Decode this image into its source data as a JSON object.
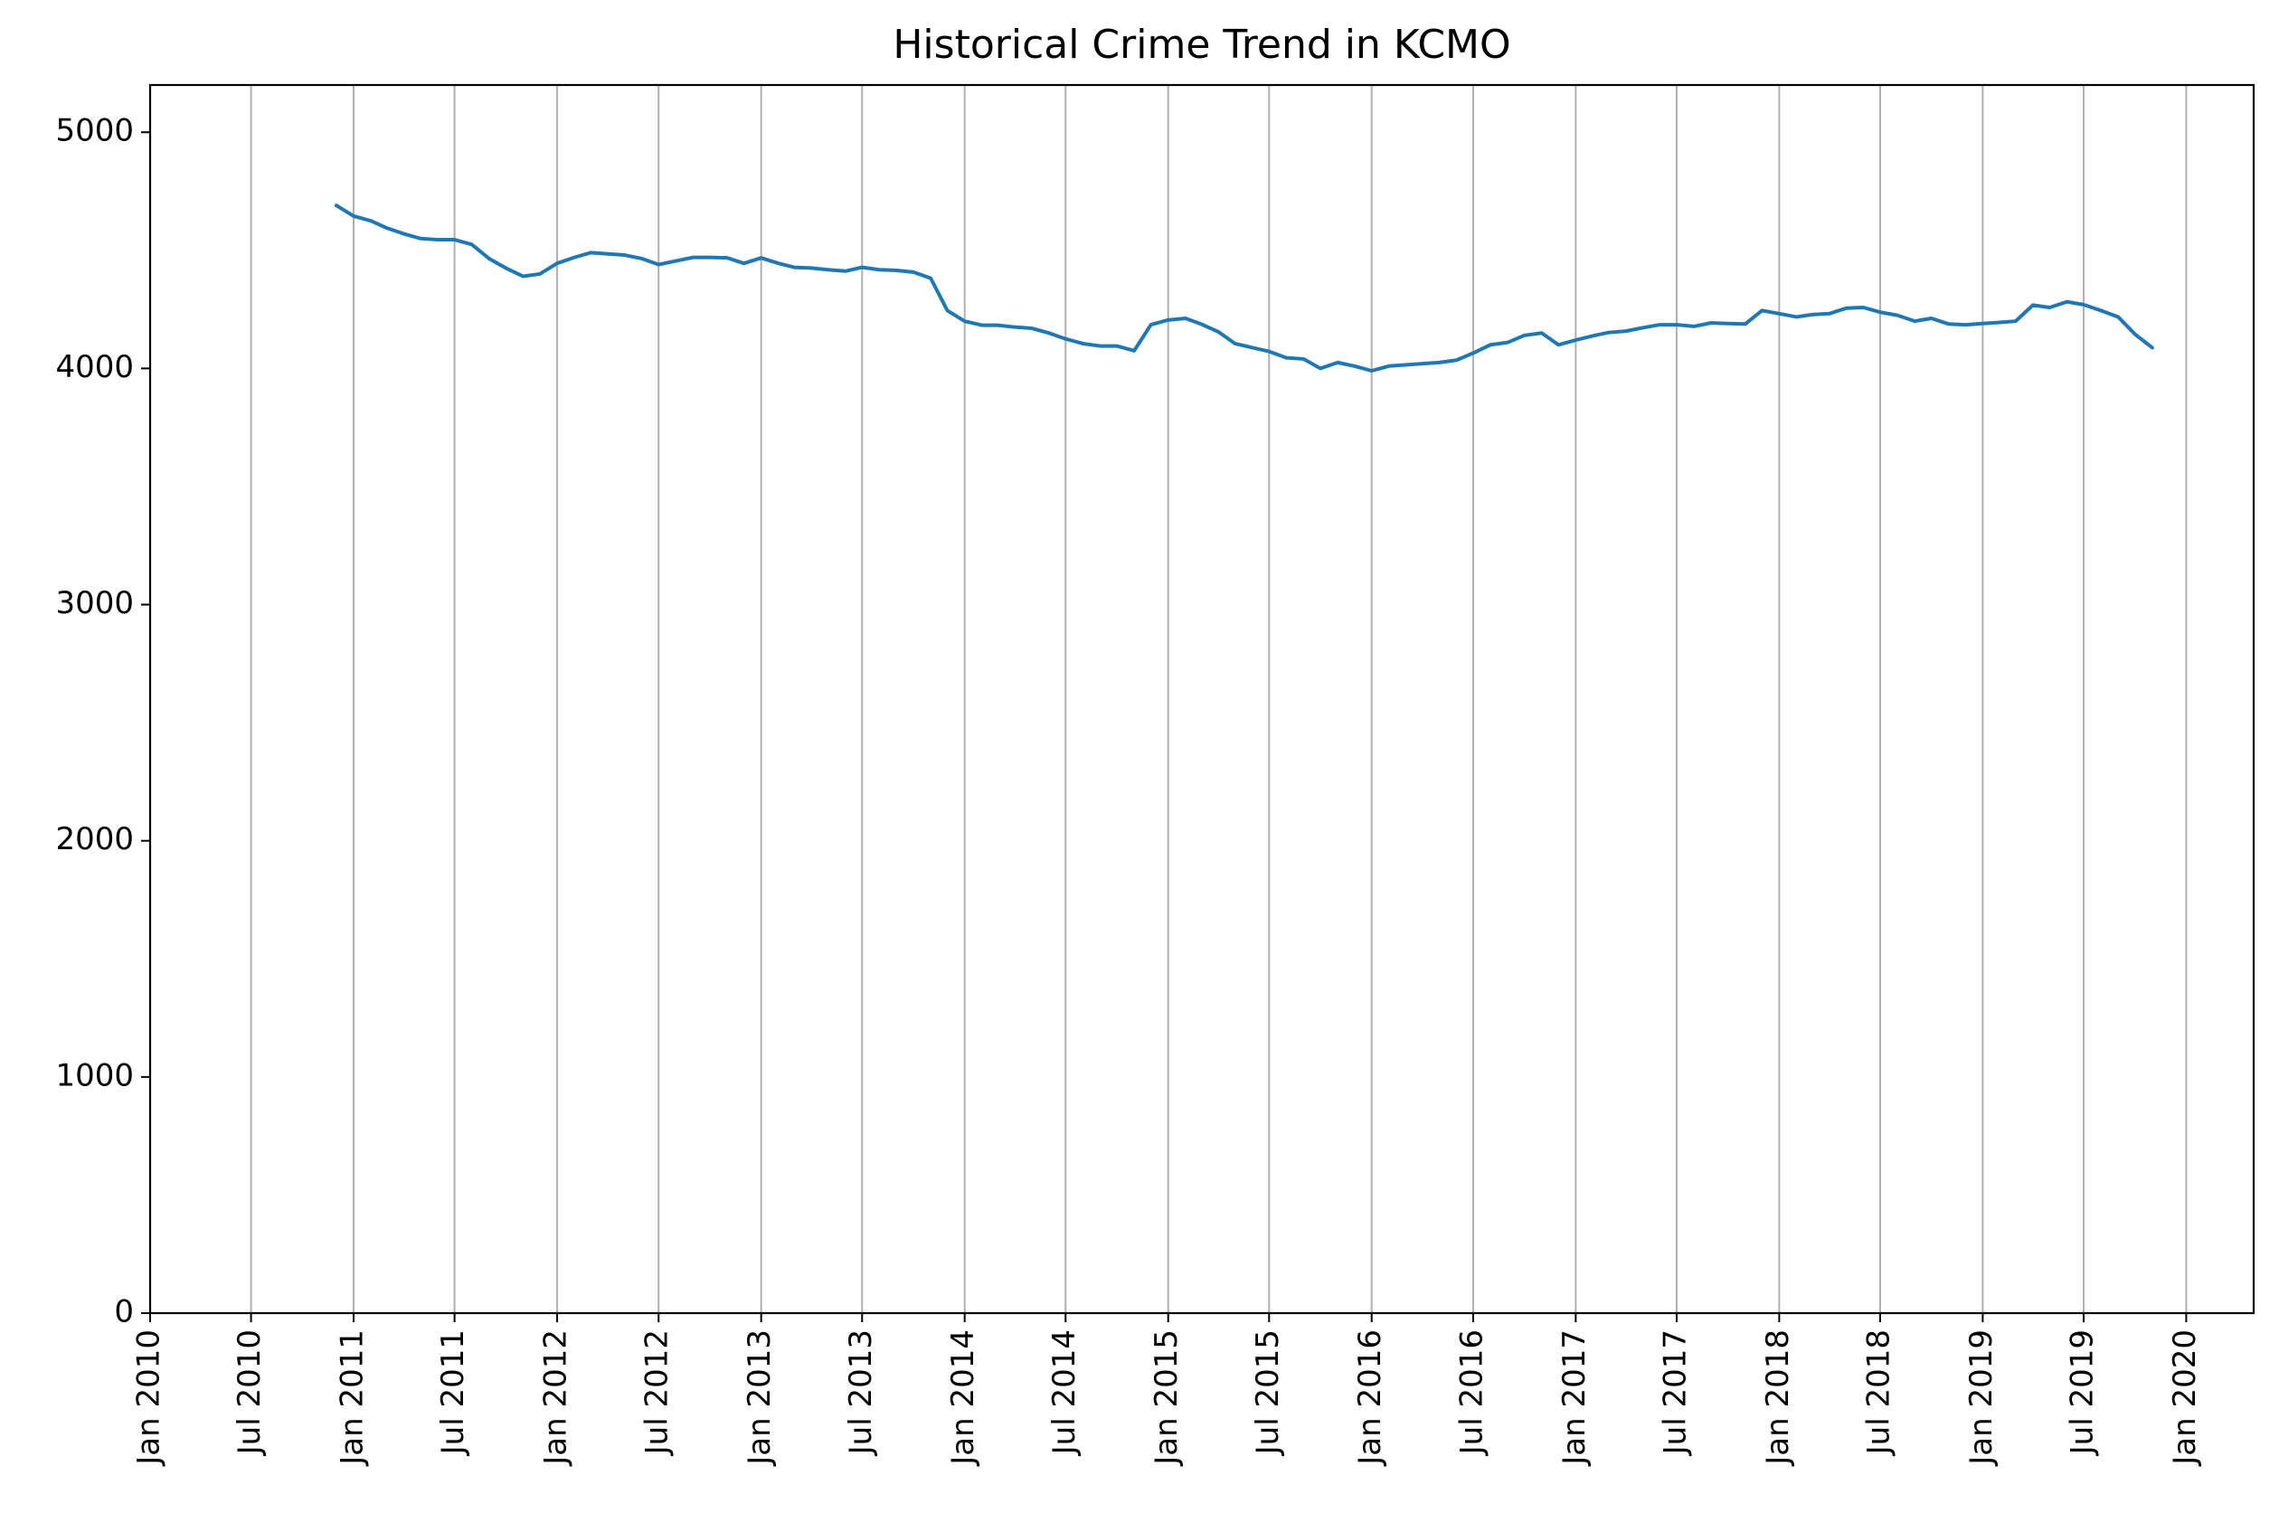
{
  "chart_data": {
    "type": "line",
    "title": "Historical Crime Trend in KCMO",
    "xlabel": "",
    "ylabel": "",
    "xlim": [
      "2010-01-01",
      "2020-05-01"
    ],
    "ylim": [
      0,
      5200
    ],
    "grid": "vertical",
    "x_ticks": [
      {
        "date": "2010-01-01",
        "label": "Jan 2010"
      },
      {
        "date": "2010-07-01",
        "label": "Jul 2010"
      },
      {
        "date": "2011-01-01",
        "label": "Jan 2011"
      },
      {
        "date": "2011-07-01",
        "label": "Jul 2011"
      },
      {
        "date": "2012-01-01",
        "label": "Jan 2012"
      },
      {
        "date": "2012-07-01",
        "label": "Jul 2012"
      },
      {
        "date": "2013-01-01",
        "label": "Jan 2013"
      },
      {
        "date": "2013-07-01",
        "label": "Jul 2013"
      },
      {
        "date": "2014-01-01",
        "label": "Jan 2014"
      },
      {
        "date": "2014-07-01",
        "label": "Jul 2014"
      },
      {
        "date": "2015-01-01",
        "label": "Jan 2015"
      },
      {
        "date": "2015-07-01",
        "label": "Jul 2015"
      },
      {
        "date": "2016-01-01",
        "label": "Jan 2016"
      },
      {
        "date": "2016-07-01",
        "label": "Jul 2016"
      },
      {
        "date": "2017-01-01",
        "label": "Jan 2017"
      },
      {
        "date": "2017-07-01",
        "label": "Jul 2017"
      },
      {
        "date": "2018-01-01",
        "label": "Jan 2018"
      },
      {
        "date": "2018-07-01",
        "label": "Jul 2018"
      },
      {
        "date": "2019-01-01",
        "label": "Jan 2019"
      },
      {
        "date": "2019-07-01",
        "label": "Jul 2019"
      },
      {
        "date": "2020-01-01",
        "label": "Jan 2020"
      }
    ],
    "y_ticks": [
      {
        "value": 0,
        "label": "0"
      },
      {
        "value": 1000,
        "label": "1000"
      },
      {
        "value": 2000,
        "label": "2000"
      },
      {
        "value": 3000,
        "label": "3000"
      },
      {
        "value": 4000,
        "label": "4000"
      },
      {
        "value": 5000,
        "label": "5000"
      }
    ],
    "series": [
      {
        "color": "#1f77b4",
        "points": [
          [
            "2010-12-01",
            4690
          ],
          [
            "2011-01-01",
            4645
          ],
          [
            "2011-02-01",
            4625
          ],
          [
            "2011-03-01",
            4595
          ],
          [
            "2011-04-01",
            4570
          ],
          [
            "2011-05-01",
            4550
          ],
          [
            "2011-06-01",
            4545
          ],
          [
            "2011-07-01",
            4545
          ],
          [
            "2011-08-01",
            4525
          ],
          [
            "2011-09-01",
            4465
          ],
          [
            "2011-10-01",
            4425
          ],
          [
            "2011-11-01",
            4390
          ],
          [
            "2011-12-01",
            4400
          ],
          [
            "2012-01-01",
            4445
          ],
          [
            "2012-02-01",
            4470
          ],
          [
            "2012-03-01",
            4490
          ],
          [
            "2012-04-01",
            4485
          ],
          [
            "2012-05-01",
            4480
          ],
          [
            "2012-06-01",
            4465
          ],
          [
            "2012-07-01",
            4440
          ],
          [
            "2012-08-01",
            4455
          ],
          [
            "2012-09-01",
            4470
          ],
          [
            "2012-10-01",
            4470
          ],
          [
            "2012-11-01",
            4468
          ],
          [
            "2012-12-01",
            4445
          ],
          [
            "2013-01-01",
            4468
          ],
          [
            "2013-02-01",
            4445
          ],
          [
            "2013-03-01",
            4428
          ],
          [
            "2013-04-01",
            4425
          ],
          [
            "2013-05-01",
            4418
          ],
          [
            "2013-06-01",
            4412
          ],
          [
            "2013-07-01",
            4428
          ],
          [
            "2013-08-01",
            4418
          ],
          [
            "2013-09-01",
            4415
          ],
          [
            "2013-10-01",
            4408
          ],
          [
            "2013-11-01",
            4382
          ],
          [
            "2013-12-01",
            4245
          ],
          [
            "2014-01-01",
            4200
          ],
          [
            "2014-02-01",
            4183
          ],
          [
            "2014-03-01",
            4183
          ],
          [
            "2014-04-01",
            4175
          ],
          [
            "2014-05-01",
            4170
          ],
          [
            "2014-06-01",
            4150
          ],
          [
            "2014-07-01",
            4125
          ],
          [
            "2014-08-01",
            4105
          ],
          [
            "2014-09-01",
            4095
          ],
          [
            "2014-10-01",
            4095
          ],
          [
            "2014-11-01",
            4075
          ],
          [
            "2014-12-01",
            4185
          ],
          [
            "2015-01-01",
            4205
          ],
          [
            "2015-02-01",
            4212
          ],
          [
            "2015-03-01",
            4188
          ],
          [
            "2015-04-01",
            4155
          ],
          [
            "2015-05-01",
            4105
          ],
          [
            "2015-06-01",
            4088
          ],
          [
            "2015-07-01",
            4072
          ],
          [
            "2015-08-01",
            4045
          ],
          [
            "2015-09-01",
            4040
          ],
          [
            "2015-10-01",
            4000
          ],
          [
            "2015-11-01",
            4025
          ],
          [
            "2015-12-01",
            4010
          ],
          [
            "2016-01-01",
            3990
          ],
          [
            "2016-02-01",
            4010
          ],
          [
            "2016-03-01",
            4015
          ],
          [
            "2016-04-01",
            4020
          ],
          [
            "2016-05-01",
            4025
          ],
          [
            "2016-06-01",
            4035
          ],
          [
            "2016-07-01",
            4065
          ],
          [
            "2016-08-01",
            4100
          ],
          [
            "2016-09-01",
            4110
          ],
          [
            "2016-10-01",
            4140
          ],
          [
            "2016-11-01",
            4150
          ],
          [
            "2016-12-01",
            4100
          ],
          [
            "2017-01-01",
            4120
          ],
          [
            "2017-02-01",
            4138
          ],
          [
            "2017-03-01",
            4152
          ],
          [
            "2017-04-01",
            4158
          ],
          [
            "2017-05-01",
            4172
          ],
          [
            "2017-06-01",
            4185
          ],
          [
            "2017-07-01",
            4185
          ],
          [
            "2017-08-01",
            4178
          ],
          [
            "2017-09-01",
            4193
          ],
          [
            "2017-10-01",
            4190
          ],
          [
            "2017-11-01",
            4188
          ],
          [
            "2017-12-01",
            4245
          ],
          [
            "2018-01-01",
            4232
          ],
          [
            "2018-02-01",
            4218
          ],
          [
            "2018-03-01",
            4228
          ],
          [
            "2018-04-01",
            4232
          ],
          [
            "2018-05-01",
            4255
          ],
          [
            "2018-06-01",
            4258
          ],
          [
            "2018-07-01",
            4238
          ],
          [
            "2018-08-01",
            4225
          ],
          [
            "2018-09-01",
            4200
          ],
          [
            "2018-10-01",
            4212
          ],
          [
            "2018-11-01",
            4188
          ],
          [
            "2018-12-01",
            4185
          ],
          [
            "2019-01-01",
            4190
          ],
          [
            "2019-02-01",
            4195
          ],
          [
            "2019-03-01",
            4200
          ],
          [
            "2019-04-01",
            4268
          ],
          [
            "2019-05-01",
            4258
          ],
          [
            "2019-06-01",
            4282
          ],
          [
            "2019-07-01",
            4270
          ],
          [
            "2019-08-01",
            4245
          ],
          [
            "2019-09-01",
            4218
          ],
          [
            "2019-10-01",
            4145
          ],
          [
            "2019-11-01",
            4088
          ]
        ]
      }
    ]
  }
}
